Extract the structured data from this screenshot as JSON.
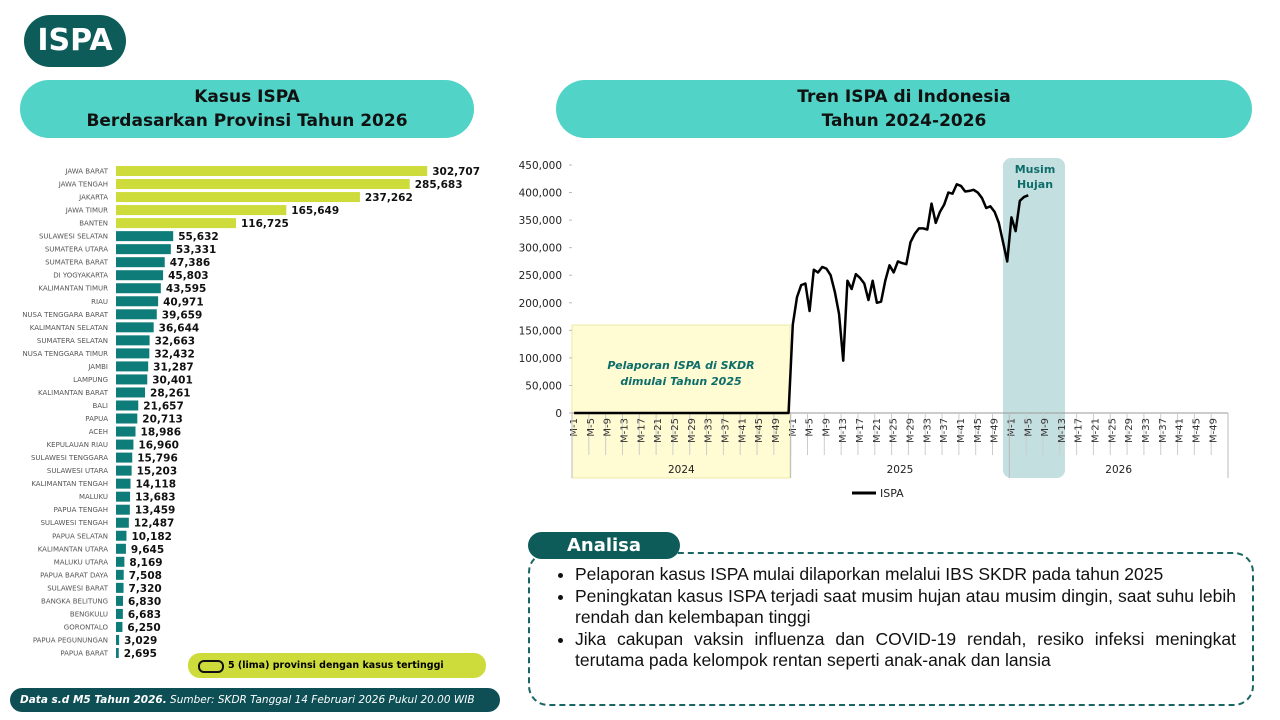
{
  "header": {
    "title": "ISPA"
  },
  "chart_data": [
    {
      "type": "bar",
      "orientation": "horizontal",
      "title": [
        "Kasus ISPA",
        "Berdasarkan Provinsi Tahun 2026"
      ],
      "categories": [
        "JAWA BARAT",
        "JAWA TENGAH",
        "JAKARTA",
        "JAWA TIMUR",
        "BANTEN",
        "SULAWESI SELATAN",
        "SUMATERA UTARA",
        "SUMATERA BARAT",
        "DI YOGYAKARTA",
        "KALIMANTAN TIMUR",
        "RIAU",
        "NUSA TENGGARA BARAT",
        "KALIMANTAN SELATAN",
        "SUMATERA SELATAN",
        "NUSA TENGGARA TIMUR",
        "JAMBI",
        "LAMPUNG",
        "KALIMANTAN BARAT",
        "BALI",
        "PAPUA",
        "ACEH",
        "KEPULAUAN RIAU",
        "SULAWESI TENGGARA",
        "SULAWESI UTARA",
        "KALIMANTAN TENGAH",
        "MALUKU",
        "PAPUA TENGAH",
        "SULAWESI TENGAH",
        "PAPUA SELATAN",
        "KALIMANTAN UTARA",
        "MALUKU UTARA",
        "PAPUA BARAT DAYA",
        "SULAWESI BARAT",
        "BANGKA BELITUNG",
        "BENGKULU",
        "GORONTALO",
        "PAPUA PEGUNUNGAN",
        "PAPUA BARAT"
      ],
      "values": [
        302707,
        285683,
        237262,
        165649,
        116725,
        55632,
        53331,
        47386,
        45803,
        43595,
        40971,
        39659,
        36644,
        32663,
        32432,
        31287,
        30401,
        28261,
        21657,
        20713,
        18986,
        16960,
        15796,
        15203,
        14118,
        13683,
        13459,
        12487,
        10182,
        9645,
        8169,
        7508,
        7320,
        6830,
        6683,
        6250,
        3029,
        2695
      ],
      "value_labels": [
        "302,707",
        "285,683",
        "237,262",
        "165,649",
        "116,725",
        "55,632",
        "53,331",
        "47,386",
        "45,803",
        "43,595",
        "40,971",
        "39,659",
        "36,644",
        "32,663",
        "32,432",
        "31,287",
        "30,401",
        "28,261",
        "21,657",
        "20,713",
        "18,986",
        "16,960",
        "15,796",
        "15,203",
        "14,118",
        "13,683",
        "13,459",
        "12,487",
        "10,182",
        "9,645",
        "8,169",
        "7,508",
        "7,320",
        "6,830",
        "6,683",
        "6,250",
        "3,029",
        "2,695"
      ],
      "colors": [
        "#cddc3a",
        "#cddc3a",
        "#cddc3a",
        "#cddc3a",
        "#cddc3a",
        "#0e7c78",
        "#0e7c78",
        "#0e7c78",
        "#0e7c78",
        "#0e7c78",
        "#0e7c78",
        "#0e7c78",
        "#0e7c78",
        "#0e7c78",
        "#0e7c78",
        "#0e7c78",
        "#0e7c78",
        "#0e7c78",
        "#0e7c78",
        "#0e7c78",
        "#0e7c78",
        "#0e7c78",
        "#0e7c78",
        "#0e7c78",
        "#0e7c78",
        "#0e7c78",
        "#0e7c78",
        "#0e7c78",
        "#0e7c78",
        "#0e7c78",
        "#0e7c78",
        "#0e7c78",
        "#0e7c78",
        "#0e7c78",
        "#0e7c78",
        "#0e7c78",
        "#0e7c78",
        "#0e7c78"
      ],
      "xlim": [
        0,
        320000
      ],
      "note": "5 (lima) provinsi dengan kasus tertinggi"
    },
    {
      "type": "line",
      "title": [
        "Tren ISPA di Indonesia",
        "Tahun 2024-2026"
      ],
      "categories": [
        "M-1",
        null,
        null,
        null,
        "M-5",
        null,
        null,
        null,
        "M-9",
        null,
        null,
        null,
        "M-13",
        null,
        null,
        null,
        "M-17",
        null,
        null,
        null,
        "M-21",
        null,
        null,
        null,
        "M-25",
        null,
        null,
        null,
        "M-29",
        null,
        null,
        null,
        "M-33",
        null,
        null,
        null,
        "M-37",
        null,
        null,
        null,
        "M-41",
        null,
        null,
        null,
        "M-45",
        null,
        null,
        null,
        "M-49",
        null,
        null,
        null,
        "M-1",
        null,
        null,
        null,
        "M-5",
        null,
        null,
        null,
        "M-9",
        null,
        null,
        null,
        "M-13",
        null,
        null,
        null,
        "M-17",
        null,
        null,
        null,
        "M-21",
        null,
        null,
        null,
        "M-25",
        null,
        null,
        null,
        "M-29",
        null,
        null,
        null,
        "M-33",
        null,
        null,
        null,
        "M-37",
        null,
        null,
        null,
        "M-41",
        null,
        null,
        null,
        "M-45",
        null,
        null,
        null,
        "M-49",
        null,
        null,
        null,
        "M-1",
        null,
        null,
        null,
        "M-5",
        null,
        null,
        null,
        "M-9",
        null,
        null,
        null,
        "M-13",
        null,
        null,
        null,
        "M-17",
        null,
        null,
        null,
        "M-21",
        null,
        null,
        null,
        "M-25",
        null,
        null,
        null,
        "M-29",
        null,
        null,
        null,
        "M-33",
        null,
        null,
        null,
        "M-37",
        null,
        null,
        null,
        "M-41",
        null,
        null,
        null,
        "M-45",
        null,
        null,
        null,
        "M-49",
        null,
        null,
        null
      ],
      "groups": [
        "2024",
        "2025",
        "2026"
      ],
      "series": [
        {
          "name": "ISPA",
          "color": "#000000",
          "values": [
            0,
            0,
            0,
            0,
            0,
            0,
            0,
            0,
            0,
            0,
            0,
            0,
            0,
            0,
            0,
            0,
            0,
            0,
            0,
            0,
            0,
            0,
            0,
            0,
            0,
            0,
            0,
            0,
            0,
            0,
            0,
            0,
            0,
            0,
            0,
            0,
            0,
            0,
            0,
            0,
            0,
            0,
            0,
            0,
            0,
            0,
            0,
            0,
            0,
            0,
            0,
            0,
            160000,
            210000,
            232000,
            235000,
            185000,
            260000,
            255000,
            265000,
            262000,
            250000,
            220000,
            180000,
            95000,
            240000,
            225000,
            252000,
            245000,
            235000,
            205000,
            240000,
            200000,
            202000,
            240000,
            268000,
            255000,
            275000,
            272000,
            270000,
            310000,
            325000,
            335000,
            335000,
            333000,
            380000,
            345000,
            365000,
            378000,
            400000,
            398000,
            415000,
            412000,
            402000,
            403000,
            405000,
            400000,
            390000,
            372000,
            375000,
            365000,
            345000,
            310000,
            275000,
            355000,
            330000,
            385000,
            392000,
            395000,
            null,
            null,
            null,
            null,
            null,
            null,
            null,
            null,
            null,
            null,
            null,
            null,
            null,
            null,
            null,
            null,
            null,
            null,
            null,
            null,
            null,
            null,
            null,
            null,
            null,
            null,
            null,
            null,
            null,
            null,
            null,
            null,
            null,
            null,
            null,
            null,
            null,
            null,
            null,
            null,
            null,
            null,
            null,
            null,
            null,
            null,
            null
          ]
        }
      ],
      "ylim": [
        0,
        450000
      ],
      "yticks": [
        0,
        {
          "value": 50000,
          "label": "50,000"
        },
        {
          "value": 100000,
          "label": "100,000"
        },
        {
          "value": 150000,
          "label": "150,000"
        },
        {
          "value": 200000,
          "label": "200,000"
        },
        {
          "value": 250000,
          "label": "250,000"
        },
        {
          "value": 300000,
          "label": "300,000"
        },
        {
          "value": 350000,
          "label": "350,000"
        },
        {
          "value": 400000,
          "label": "400,000"
        },
        {
          "value": 450000,
          "label": "450,000"
        }
      ],
      "annotations": [
        "Pelaporan ISPA di SKDR",
        "dimulai Tahun 2025",
        "Musim",
        "Hujan"
      ],
      "legend": "bottom"
    }
  ],
  "analysis": {
    "title": "Analisa",
    "bullets": [
      "Pelaporan kasus ISPA mulai dilaporkan melalui IBS SKDR pada tahun 2025",
      "Peningkatan kasus ISPA terjadi saat musim hujan atau musim dingin, saat suhu lebih rendah dan kelembapan tinggi",
      "Jika cakupan vaksin influenza dan COVID-19 rendah, resiko infeksi meningkat terutama pada kelompok rentan seperti anak-anak dan lansia"
    ]
  },
  "footer": {
    "bold": "Data s.d M5 Tahun 2026.",
    "text": "Sumber: SKDR Tanggal 14 Februari 2026 Pukul 20.00 WIB"
  }
}
